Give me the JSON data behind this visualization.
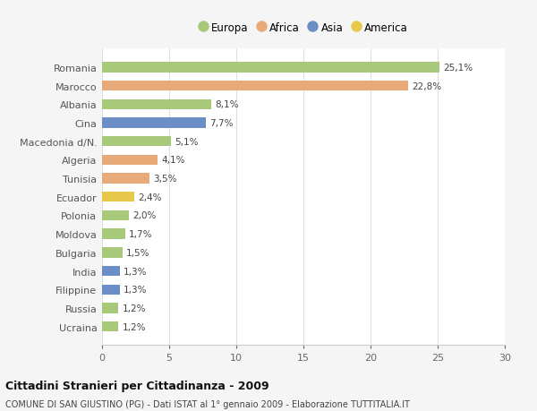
{
  "categories": [
    "Ucraina",
    "Russia",
    "Filippine",
    "India",
    "Bulgaria",
    "Moldova",
    "Polonia",
    "Ecuador",
    "Tunisia",
    "Algeria",
    "Macedonia d/N.",
    "Cina",
    "Albania",
    "Marocco",
    "Romania"
  ],
  "values": [
    1.2,
    1.2,
    1.3,
    1.3,
    1.5,
    1.7,
    2.0,
    2.4,
    3.5,
    4.1,
    5.1,
    7.7,
    8.1,
    22.8,
    25.1
  ],
  "labels": [
    "1,2%",
    "1,2%",
    "1,3%",
    "1,3%",
    "1,5%",
    "1,7%",
    "2,0%",
    "2,4%",
    "3,5%",
    "4,1%",
    "5,1%",
    "7,7%",
    "8,1%",
    "22,8%",
    "25,1%"
  ],
  "colors": [
    "#a8c87a",
    "#a8c87a",
    "#6b8ec6",
    "#6b8ec6",
    "#a8c87a",
    "#a8c87a",
    "#a8c87a",
    "#e8c84a",
    "#e8aa78",
    "#e8aa78",
    "#a8c87a",
    "#6b8ec6",
    "#a8c87a",
    "#e8aa78",
    "#a8c87a"
  ],
  "legend_labels": [
    "Europa",
    "Africa",
    "Asia",
    "America"
  ],
  "legend_colors": [
    "#a8c87a",
    "#e8aa78",
    "#6b8ec6",
    "#e8c84a"
  ],
  "title": "Cittadini Stranieri per Cittadinanza - 2009",
  "subtitle": "COMUNE DI SAN GIUSTINO (PG) - Dati ISTAT al 1° gennaio 2009 - Elaborazione TUTTITALIA.IT",
  "xlim": [
    0,
    30
  ],
  "xticks": [
    0,
    5,
    10,
    15,
    20,
    25,
    30
  ],
  "bg_color": "#f5f5f5",
  "plot_bg_color": "#ffffff",
  "grid_color": "#e0e0e0"
}
